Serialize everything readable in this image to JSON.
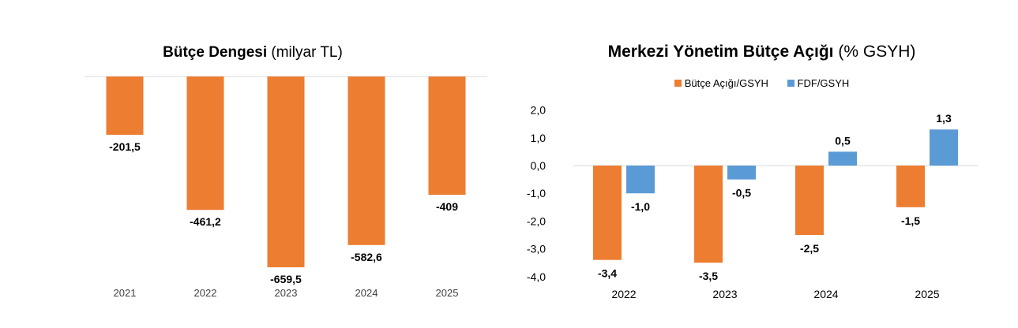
{
  "colors": {
    "orange": "#ED7D31",
    "blue": "#5B9BD5",
    "axis": "#D9D9D9"
  },
  "left_chart": {
    "title_bold": "Bütçe Dengesi",
    "title_rest": " (milyar TL)"
  },
  "right_chart": {
    "title_bold": "Merkezi Yönetim Bütçe Açığı",
    "title_rest": " (% GSYH)",
    "legend": [
      "Bütçe Açığı/GSYH",
      "FDF/GSYH"
    ]
  },
  "chart_data": [
    {
      "type": "bar",
      "title": "Bütçe Dengesi (milyar TL)",
      "categories": [
        "2021",
        "2022",
        "2023",
        "2024",
        "2025"
      ],
      "values": [
        -201.5,
        -461.2,
        -659.5,
        -582.6,
        -409
      ],
      "data_labels": [
        "-201,5",
        "-461,2",
        "-659,5",
        "-582,6",
        "-409"
      ],
      "ylim": [
        -700,
        0
      ],
      "grid": false,
      "legend": "none"
    },
    {
      "type": "bar",
      "title": "Merkezi Yönetim Bütçe Açığı (% GSYH)",
      "categories": [
        "2022",
        "2023",
        "2024",
        "2025"
      ],
      "series": [
        {
          "name": "Bütçe Açığı/GSYH",
          "values": [
            -3.4,
            -3.5,
            -2.5,
            -1.5
          ],
          "data_labels": [
            "-3,4",
            "-3,5",
            "-2,5",
            "-1,5"
          ]
        },
        {
          "name": "FDF/GSYH",
          "values": [
            -1.0,
            -0.5,
            0.5,
            1.3
          ],
          "data_labels": [
            "-1,0",
            "-0,5",
            "0,5",
            "1,3"
          ]
        }
      ],
      "yticks": [
        "2,0",
        "1,0",
        "0,0",
        "-1,0",
        "-2,0",
        "-3,0",
        "-4,0"
      ],
      "ylim": [
        -4,
        2
      ],
      "grid": false,
      "legend": "top"
    }
  ]
}
